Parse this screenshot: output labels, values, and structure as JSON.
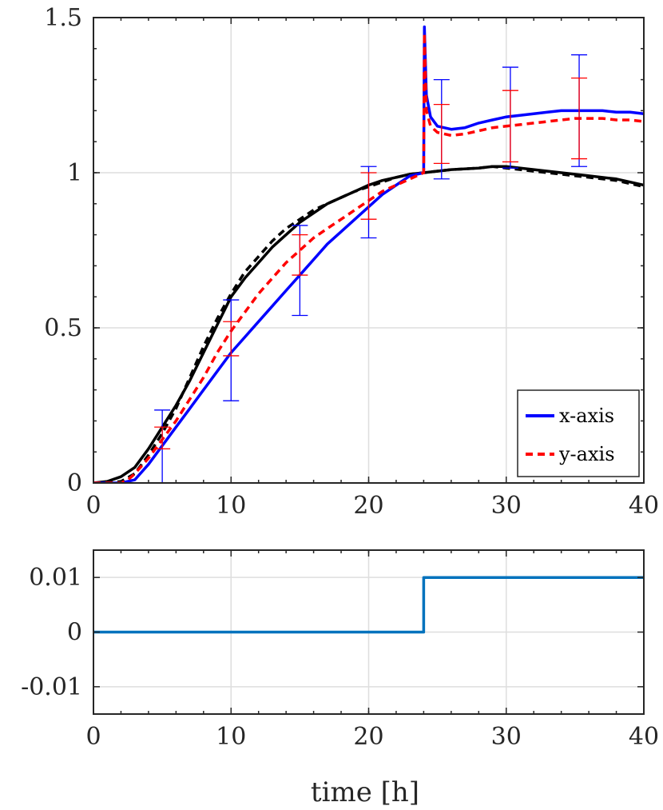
{
  "chart_data": [
    {
      "type": "line",
      "xlim": [
        0,
        40
      ],
      "ylim": [
        0,
        1.5
      ],
      "x_ticks": [
        "0",
        "10",
        "20",
        "30",
        "40"
      ],
      "y_ticks": [
        "0",
        "0.5",
        "1",
        "1.5"
      ],
      "grid": true,
      "legend": {
        "placement": "bottom-right",
        "entries": [
          "x-axis",
          "y-axis"
        ]
      },
      "series": [
        {
          "name": "x-axis",
          "color": "#0000ff",
          "style": "solid",
          "x": [
            0,
            2,
            3,
            4,
            5,
            6,
            7,
            8,
            9,
            10,
            11,
            12,
            13,
            14,
            15,
            16,
            17,
            18,
            19,
            20,
            21,
            22,
            23,
            24,
            24.05,
            24.2,
            24.5,
            25,
            26,
            27,
            28,
            29,
            30,
            31,
            32,
            33,
            34,
            35,
            36,
            37,
            38,
            39,
            40
          ],
          "y": [
            0,
            0,
            0.01,
            0.06,
            0.12,
            0.18,
            0.24,
            0.3,
            0.36,
            0.42,
            0.47,
            0.52,
            0.57,
            0.62,
            0.67,
            0.72,
            0.77,
            0.81,
            0.85,
            0.89,
            0.93,
            0.96,
            0.99,
            1.0,
            1.47,
            1.25,
            1.18,
            1.15,
            1.14,
            1.145,
            1.16,
            1.17,
            1.18,
            1.185,
            1.19,
            1.195,
            1.2,
            1.2,
            1.2,
            1.2,
            1.195,
            1.195,
            1.19
          ]
        },
        {
          "name": "y-axis",
          "color": "#ff0000",
          "style": "dashed",
          "x": [
            0,
            2,
            2.5,
            3,
            4,
            5,
            6,
            7,
            8,
            9,
            10,
            11,
            12,
            13,
            14,
            15,
            16,
            17,
            18,
            19,
            20,
            21,
            22,
            23,
            24,
            24.05,
            24.2,
            24.5,
            25,
            26,
            27,
            28,
            29,
            30,
            31,
            32,
            33,
            34,
            35,
            36,
            37,
            38,
            39,
            40
          ],
          "y": [
            0,
            0,
            0.01,
            0.03,
            0.08,
            0.14,
            0.2,
            0.27,
            0.34,
            0.42,
            0.49,
            0.55,
            0.61,
            0.66,
            0.71,
            0.75,
            0.79,
            0.82,
            0.85,
            0.88,
            0.91,
            0.94,
            0.96,
            0.98,
            1.0,
            1.45,
            1.2,
            1.15,
            1.13,
            1.12,
            1.125,
            1.135,
            1.145,
            1.15,
            1.155,
            1.16,
            1.165,
            1.17,
            1.175,
            1.175,
            1.175,
            1.17,
            1.17,
            1.165
          ]
        },
        {
          "color": "#000000",
          "style": "solid",
          "x": [
            0,
            1,
            2,
            3,
            4,
            5,
            6,
            7,
            8,
            9,
            10,
            11,
            12,
            13,
            14,
            15,
            16,
            17,
            18,
            19,
            20,
            21,
            22,
            23,
            24,
            26,
            28,
            29,
            30,
            32,
            34,
            36,
            38,
            40
          ],
          "y": [
            0,
            0.005,
            0.02,
            0.05,
            0.11,
            0.18,
            0.25,
            0.33,
            0.42,
            0.51,
            0.6,
            0.66,
            0.71,
            0.76,
            0.8,
            0.84,
            0.87,
            0.9,
            0.92,
            0.94,
            0.96,
            0.975,
            0.985,
            0.995,
            1.0,
            1.01,
            1.015,
            1.02,
            1.02,
            1.01,
            1.0,
            0.99,
            0.98,
            0.96
          ]
        },
        {
          "color": "#000000",
          "style": "dashed",
          "x": [
            0,
            1,
            2,
            3,
            4,
            5,
            6,
            7,
            8,
            9,
            10,
            11,
            12,
            13,
            14,
            15,
            16,
            17,
            18,
            19,
            20,
            21,
            22,
            23,
            24,
            26,
            28,
            29,
            30,
            32,
            34,
            36,
            38,
            40
          ],
          "y": [
            0,
            0,
            0.005,
            0.03,
            0.09,
            0.16,
            0.24,
            0.34,
            0.44,
            0.53,
            0.61,
            0.68,
            0.73,
            0.78,
            0.82,
            0.85,
            0.88,
            0.9,
            0.92,
            0.94,
            0.955,
            0.97,
            0.985,
            0.995,
            1.0,
            1.01,
            1.015,
            1.02,
            1.015,
            1.005,
            0.995,
            0.985,
            0.975,
            0.955
          ]
        }
      ],
      "error_bars": [
        {
          "series": "x-axis",
          "color": "#0000ff",
          "x": [
            5,
            10,
            15,
            20,
            25.3,
            30.3,
            35.3
          ],
          "low": [
            0.0,
            0.265,
            0.54,
            0.79,
            0.98,
            1.015,
            1.02
          ],
          "high": [
            0.235,
            0.59,
            0.83,
            1.02,
            1.3,
            1.34,
            1.38
          ]
        },
        {
          "series": "y-axis",
          "color": "#ff0000",
          "x": [
            5,
            10,
            15,
            20,
            25.3,
            30.3,
            35.3
          ],
          "low": [
            0.11,
            0.41,
            0.67,
            0.85,
            1.03,
            1.035,
            1.045
          ],
          "high": [
            0.18,
            0.52,
            0.8,
            1.0,
            1.22,
            1.265,
            1.305
          ]
        }
      ]
    },
    {
      "type": "line",
      "xlabel": "time [h]",
      "xlim": [
        0,
        40
      ],
      "ylim": [
        -0.015,
        0.015
      ],
      "x_ticks": [
        "0",
        "10",
        "20",
        "30",
        "40"
      ],
      "y_ticks": [
        "-0.01",
        "0",
        "0.01"
      ],
      "grid": true,
      "series": [
        {
          "color": "#0072bd",
          "style": "step",
          "x": [
            0,
            24,
            24,
            40
          ],
          "y": [
            0,
            0,
            0.01,
            0.01
          ]
        }
      ]
    }
  ]
}
